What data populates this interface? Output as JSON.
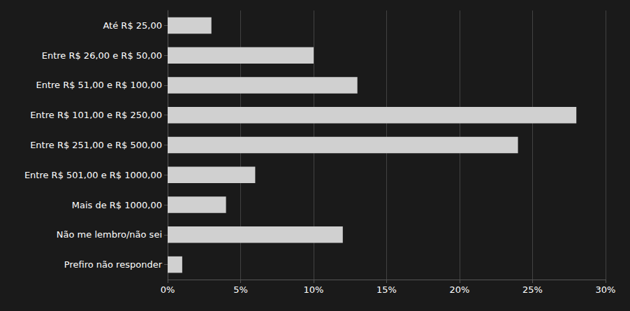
{
  "chart_data": {
    "type": "bar",
    "orientation": "horizontal",
    "categories": [
      "Até R$ 25,00",
      "Entre R$ 26,00 e R$ 50,00",
      "Entre R$ 51,00 e R$ 100,00",
      "Entre R$ 101,00 e R$ 250,00",
      "Entre R$ 251,00 e R$ 500,00",
      "Entre R$ 501,00 e R$ 1000,00",
      "Mais de R$ 1000,00",
      "Não me lembro/não sei",
      "Prefiro não responder"
    ],
    "values": [
      3,
      10,
      13,
      28,
      24,
      6,
      4,
      12,
      1
    ],
    "color": "#d0d0d0",
    "xlim": [
      0,
      30
    ],
    "xticks": [
      {
        "value": 0,
        "label": "0%"
      },
      {
        "value": 5,
        "label": "5%"
      },
      {
        "value": 10,
        "label": "10%"
      },
      {
        "value": 15,
        "label": "15%"
      },
      {
        "value": 20,
        "label": "20%"
      },
      {
        "value": 25,
        "label": "25%"
      },
      {
        "value": 30,
        "label": "30%"
      }
    ],
    "grid": true
  }
}
